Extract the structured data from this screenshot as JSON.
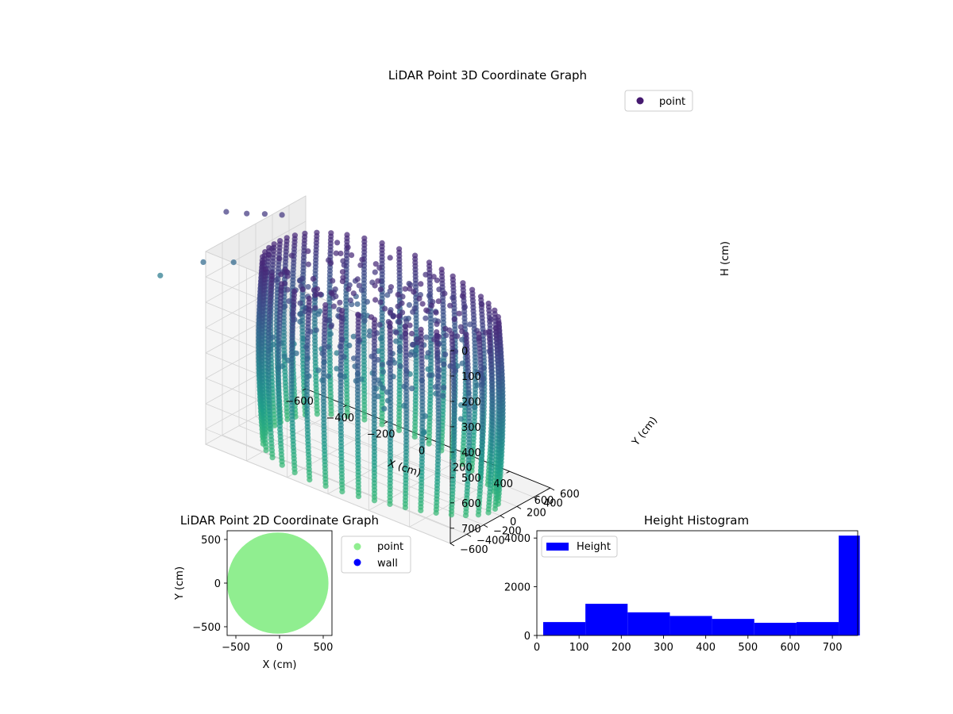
{
  "chart_data": [
    {
      "type": "scatter",
      "projection": "3d",
      "title": "LiDAR Point 3D Coordinate Graph",
      "xlabel": "X (cm)",
      "ylabel": "Y (cm)",
      "zlabel": "H (cm)",
      "xlim": [
        -600,
        600
      ],
      "ylim": [
        -600,
        600
      ],
      "zlim": [
        0,
        760
      ],
      "z_inverted": true,
      "x_ticks": [
        -600,
        -400,
        -200,
        0,
        200,
        400,
        600
      ],
      "y_ticks": [
        -600,
        -400,
        -200,
        0,
        200,
        400,
        600
      ],
      "z_ticks": [
        0,
        100,
        200,
        300,
        400,
        500,
        600,
        700
      ],
      "tick_label_format": "minus",
      "colormap": "viridis",
      "grid": true,
      "legend": {
        "position": "top-right",
        "entries": [
          {
            "label": "point",
            "color": "#45196f"
          }
        ]
      },
      "series": [
        {
          "name": "point",
          "shape": "cylindrical scan: vertical wall columns around the perimeter plus scattered ceiling points",
          "wall_radius": 560,
          "columns": 44,
          "height_range": [
            0,
            760
          ]
        }
      ]
    },
    {
      "type": "scatter",
      "title": "LiDAR Point 2D Coordinate Graph",
      "xlabel": "X (cm)",
      "ylabel": "Y (cm)",
      "xlim": [
        -600,
        600
      ],
      "ylim": [
        -600,
        600
      ],
      "x_ticks": [
        -500,
        0,
        500
      ],
      "y_ticks": [
        -500,
        0,
        500
      ],
      "legend": {
        "position": "right",
        "entries": [
          {
            "label": "point",
            "color": "#90ee90"
          },
          {
            "label": "wall",
            "color": "#0000ff"
          }
        ]
      },
      "series": [
        {
          "name": "point",
          "color": "#90ee90",
          "shape": "filled disc",
          "radius": 580,
          "center": [
            -20,
            0
          ]
        },
        {
          "name": "wall",
          "color": "#0000ff",
          "points": []
        }
      ]
    },
    {
      "type": "bar",
      "subtype": "histogram",
      "title": "Height Histogram",
      "xlim": [
        0,
        760
      ],
      "ylim": [
        0,
        4300
      ],
      "x_ticks": [
        0,
        100,
        200,
        300,
        400,
        500,
        600,
        700
      ],
      "y_ticks": [
        0,
        2000,
        4000
      ],
      "color": "#0000ff",
      "legend": {
        "position": "top-left",
        "entries": [
          {
            "label": "Height",
            "color": "#0000ff"
          }
        ]
      },
      "bins": [
        {
          "x0": 15,
          "x1": 115,
          "count": 550
        },
        {
          "x0": 115,
          "x1": 215,
          "count": 1300
        },
        {
          "x0": 215,
          "x1": 315,
          "count": 950
        },
        {
          "x0": 315,
          "x1": 415,
          "count": 800
        },
        {
          "x0": 415,
          "x1": 515,
          "count": 680
        },
        {
          "x0": 515,
          "x1": 615,
          "count": 520
        },
        {
          "x0": 615,
          "x1": 715,
          "count": 550
        },
        {
          "x0": 715,
          "x1": 765,
          "count": 4100
        }
      ]
    }
  ]
}
